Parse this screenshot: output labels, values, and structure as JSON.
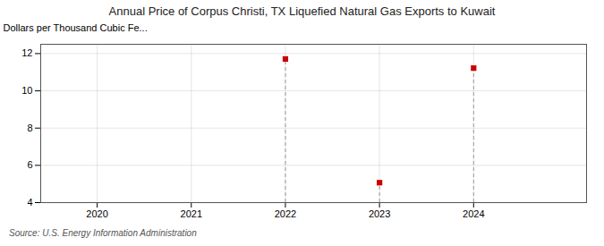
{
  "chart_data": {
    "type": "scatter",
    "title": "Annual Price of Corpus Christi, TX Liquefied Natural Gas Exports to Kuwait",
    "ylabel": "Dollars per Thousand Cubic Fe...",
    "source": "Source: U.S. Energy Information Administration",
    "x": [
      2022,
      2023,
      2024
    ],
    "values": [
      11.71,
      5.07,
      11.22
    ],
    "color": "#cc0000",
    "marker": "square",
    "xlim": [
      2019.4,
      2025.2
    ],
    "ylim": [
      4,
      12.5
    ],
    "xticks": [
      2020,
      2021,
      2022,
      2023,
      2024
    ],
    "yticks": [
      4,
      6,
      8,
      10,
      12
    ],
    "grid": true
  }
}
